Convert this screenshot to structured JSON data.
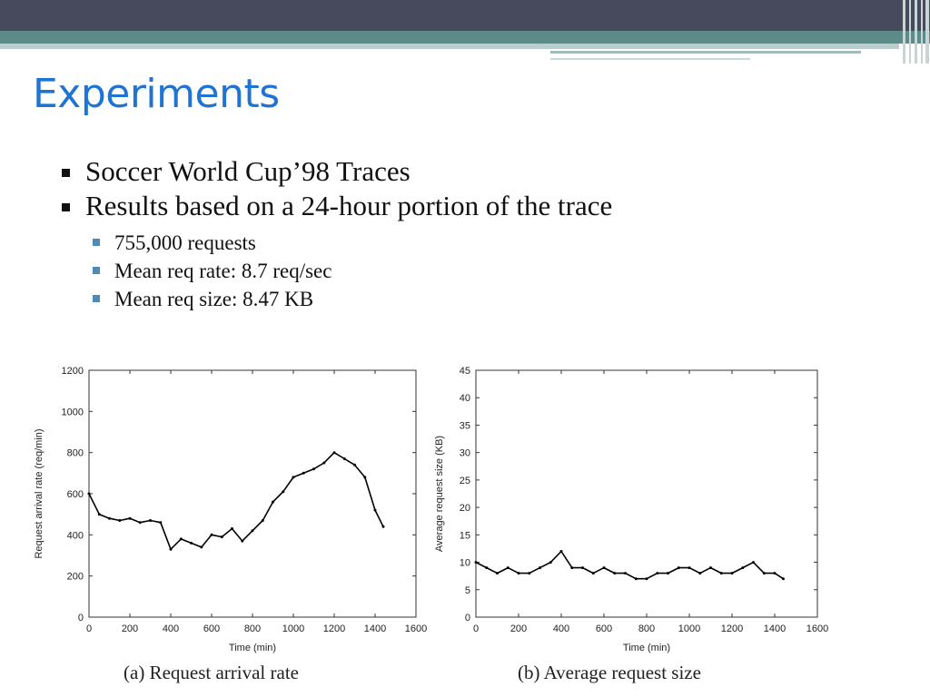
{
  "slide": {
    "title": "Experiments"
  },
  "bullets": [
    "Soccer World Cup’98 Traces",
    "Results based on a 24-hour portion of the trace"
  ],
  "sub_bullets": [
    "755,000 requests",
    "Mean req rate: 8.7 req/sec",
    "Mean req size: 8.47 KB"
  ],
  "theme": {
    "title_color": "#1f74d2",
    "accent_teal": "#5b8c8a",
    "top_bar": "#474a5c",
    "sub_bullet_color": "#4d8bb4"
  },
  "chart_data": [
    {
      "type": "line",
      "caption": "(a) Request arrival rate",
      "xlabel": "Time (min)",
      "ylabel": "Request arrival rate (req/min)",
      "xlim": [
        0,
        1600
      ],
      "ylim": [
        0,
        1200
      ],
      "xticks": [
        0,
        200,
        400,
        600,
        800,
        1000,
        1200,
        1400,
        1600
      ],
      "yticks": [
        0,
        200,
        400,
        600,
        800,
        1000,
        1200
      ],
      "series": [
        {
          "x": [
            0,
            50,
            100,
            150,
            200,
            250,
            300,
            350,
            400,
            450,
            500,
            550,
            600,
            650,
            700,
            750,
            800,
            850,
            900,
            950,
            1000,
            1050,
            1100,
            1150,
            1200,
            1250,
            1300,
            1350,
            1400,
            1440
          ],
          "values": [
            600,
            500,
            480,
            470,
            480,
            460,
            470,
            460,
            330,
            380,
            360,
            340,
            400,
            390,
            430,
            370,
            420,
            470,
            560,
            610,
            680,
            700,
            720,
            750,
            800,
            770,
            740,
            680,
            520,
            440
          ]
        }
      ]
    },
    {
      "type": "line",
      "caption": "(b) Average request size",
      "xlabel": "Time (min)",
      "ylabel": "Average request size (KB)",
      "xlim": [
        0,
        1600
      ],
      "ylim": [
        0,
        45
      ],
      "xticks": [
        0,
        200,
        400,
        600,
        800,
        1000,
        1200,
        1400,
        1600
      ],
      "yticks": [
        0,
        5,
        10,
        15,
        20,
        25,
        30,
        35,
        40,
        45
      ],
      "series": [
        {
          "x": [
            0,
            50,
            100,
            150,
            200,
            250,
            300,
            350,
            400,
            450,
            500,
            550,
            600,
            650,
            700,
            750,
            800,
            850,
            900,
            950,
            1000,
            1050,
            1100,
            1150,
            1200,
            1250,
            1300,
            1350,
            1400,
            1440
          ],
          "values": [
            10,
            9,
            8,
            9,
            8,
            8,
            9,
            10,
            12,
            9,
            9,
            8,
            9,
            8,
            8,
            7,
            7,
            8,
            8,
            9,
            9,
            8,
            9,
            8,
            8,
            9,
            10,
            8,
            8,
            7
          ]
        }
      ]
    }
  ]
}
